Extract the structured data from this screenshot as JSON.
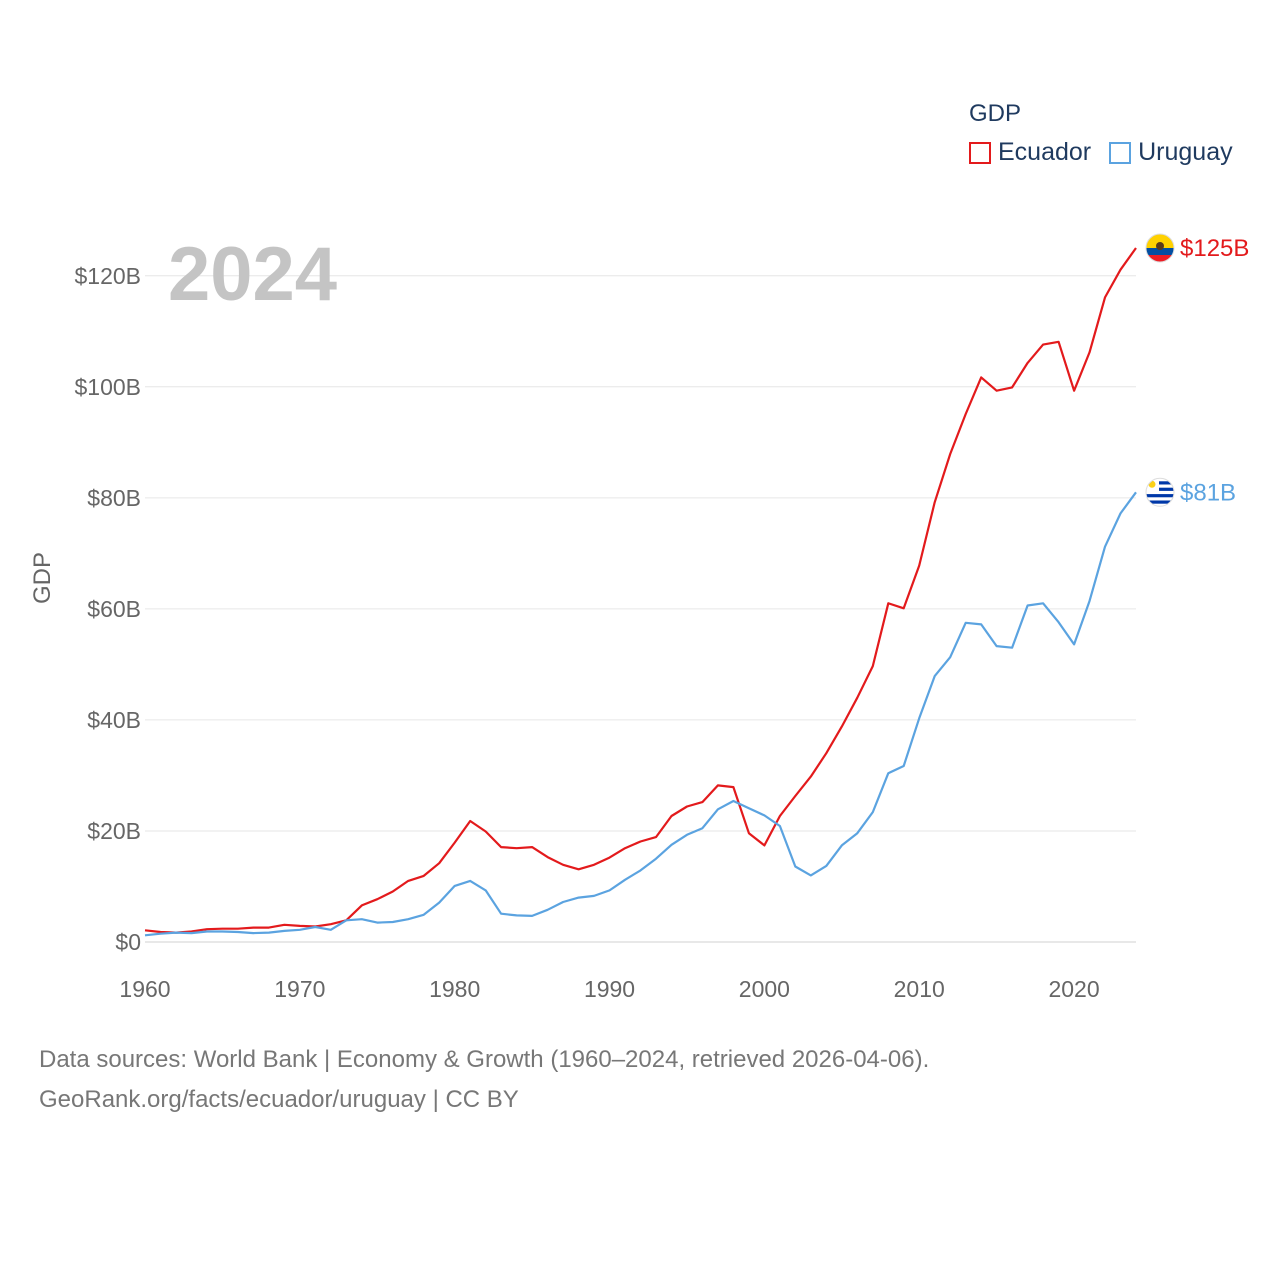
{
  "chart_data": {
    "type": "line",
    "big_year": "2024",
    "ylabel": "GDP",
    "legend_title": "GDP",
    "x_ticks": [
      1960,
      1970,
      1980,
      1990,
      2000,
      2010,
      2020
    ],
    "y_ticks": [
      {
        "value": 0,
        "label": "$0"
      },
      {
        "value": 20,
        "label": "$20B"
      },
      {
        "value": 40,
        "label": "$40B"
      },
      {
        "value": 60,
        "label": "$60B"
      },
      {
        "value": 80,
        "label": "$80B"
      },
      {
        "value": 100,
        "label": "$100B"
      },
      {
        "value": 120,
        "label": "$120B"
      }
    ],
    "xlim": [
      1960,
      2024
    ],
    "ylim": [
      0,
      125
    ],
    "units": "billions USD",
    "x": [
      1960,
      1961,
      1962,
      1963,
      1964,
      1965,
      1966,
      1967,
      1968,
      1969,
      1970,
      1971,
      1972,
      1973,
      1974,
      1975,
      1976,
      1977,
      1978,
      1979,
      1980,
      1981,
      1982,
      1983,
      1984,
      1985,
      1986,
      1987,
      1988,
      1989,
      1990,
      1991,
      1992,
      1993,
      1994,
      1995,
      1996,
      1997,
      1998,
      1999,
      2000,
      2001,
      2002,
      2003,
      2004,
      2005,
      2006,
      2007,
      2008,
      2009,
      2010,
      2011,
      2012,
      2013,
      2014,
      2015,
      2016,
      2017,
      2018,
      2019,
      2020,
      2021,
      2022,
      2023,
      2024
    ],
    "series": [
      {
        "name": "Ecuador",
        "color": "#e31a1c",
        "end_label": "$125B",
        "flag": "ecuador-flag-icon",
        "values": [
          2.1,
          1.8,
          1.7,
          1.9,
          2.3,
          2.4,
          2.4,
          2.6,
          2.6,
          3.1,
          2.9,
          2.8,
          3.2,
          3.9,
          6.6,
          7.7,
          9.1,
          11.0,
          11.9,
          14.2,
          17.9,
          21.8,
          19.9,
          17.1,
          16.9,
          17.1,
          15.3,
          13.9,
          13.1,
          13.9,
          15.2,
          16.9,
          18.1,
          18.9,
          22.7,
          24.4,
          25.2,
          28.2,
          27.9,
          19.6,
          17.4,
          22.7,
          26.3,
          29.8,
          34.0,
          38.8,
          44.0,
          49.7,
          61.0,
          60.1,
          67.8,
          79.2,
          87.9,
          95.1,
          101.7,
          99.3,
          99.9,
          104.3,
          107.6,
          108.1,
          99.3,
          106.2,
          116.1,
          121.1,
          125.0
        ]
      },
      {
        "name": "Uruguay",
        "color": "#5ba3e0",
        "end_label": "$81B",
        "flag": "uruguay-flag-icon",
        "values": [
          1.2,
          1.5,
          1.7,
          1.6,
          1.9,
          1.9,
          1.8,
          1.6,
          1.7,
          2.0,
          2.2,
          2.7,
          2.2,
          3.9,
          4.1,
          3.5,
          3.6,
          4.1,
          4.9,
          7.1,
          10.1,
          11.0,
          9.3,
          5.1,
          4.8,
          4.7,
          5.8,
          7.2,
          8.0,
          8.3,
          9.3,
          11.2,
          12.9,
          15.0,
          17.5,
          19.3,
          20.5,
          23.9,
          25.4,
          24.1,
          22.8,
          20.9,
          13.6,
          12.0,
          13.7,
          17.4,
          19.6,
          23.4,
          30.4,
          31.7,
          40.3,
          47.9,
          51.3,
          57.5,
          57.2,
          53.3,
          53.0,
          60.6,
          61.0,
          57.6,
          53.6,
          61.4,
          71.2,
          77.2,
          81.0
        ]
      }
    ]
  },
  "footer": {
    "line1": "Data sources: World Bank | Economy & Growth (1960–2024, retrieved 2026-04-06).",
    "line2": "GeoRank.org/facts/ecuador/uruguay | CC BY"
  }
}
